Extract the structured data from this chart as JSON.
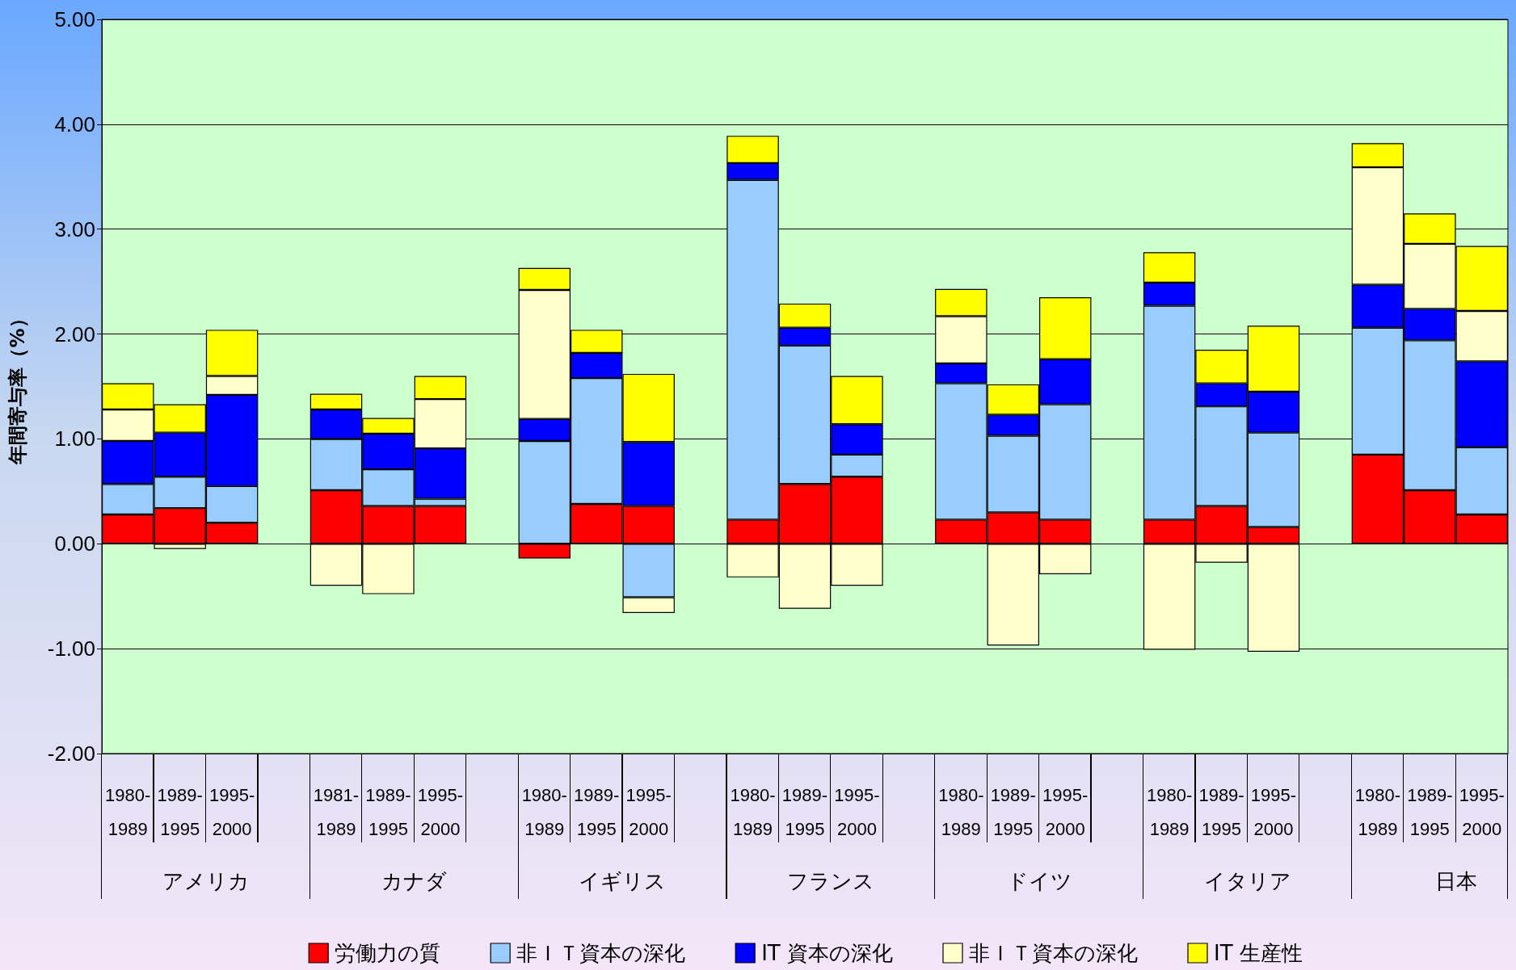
{
  "chart_data": {
    "type": "bar",
    "stacked": true,
    "ylabel": "年間寄与率（%）",
    "categories": [
      "1980-\n1989",
      "1989-\n1995",
      "1995-\n2000",
      null,
      "1981-\n1989",
      "1989-\n1995",
      "1995-\n2000",
      null,
      "1980-\n1989",
      "1989-\n1995",
      "1995-\n2000",
      null,
      "1980-\n1989",
      "1989-\n1995",
      "1995-\n2000",
      null,
      "1980-\n1989",
      "1989-\n1995",
      "1995-\n2000",
      null,
      "1980-\n1989",
      "1989-\n1995",
      "1995-\n2000",
      null,
      "1980-\n1989",
      "1989-\n1995",
      "1995-\n2000"
    ],
    "annotations": [
      "アメリカ",
      "カナダ",
      "イギリス",
      "フランス",
      "ドイツ",
      "イタリア",
      "日本"
    ],
    "series": [
      {
        "name": "労働力の質",
        "color": "#ff0000",
        "values": [
          0.28,
          0.34,
          0.2,
          null,
          0.51,
          0.36,
          0.36,
          null,
          -0.14,
          0.38,
          0.36,
          null,
          0.23,
          0.57,
          0.64,
          null,
          0.23,
          0.3,
          0.23,
          null,
          0.23,
          0.36,
          0.16,
          null,
          0.85,
          0.51,
          0.28
        ]
      },
      {
        "name": "非ＩＴ資本の深化",
        "color": "#99ccff",
        "values": [
          0.29,
          0.3,
          0.35,
          null,
          0.49,
          0.35,
          0.07,
          null,
          0.98,
          1.2,
          -0.51,
          null,
          3.24,
          1.32,
          0.21,
          null,
          1.3,
          0.73,
          1.1,
          null,
          2.04,
          0.95,
          0.9,
          null,
          1.21,
          1.43,
          0.64
        ]
      },
      {
        "name": "IT 資本の深化",
        "color": "#0000ff",
        "values": [
          0.41,
          0.42,
          0.87,
          null,
          0.28,
          0.34,
          0.48,
          null,
          0.21,
          0.24,
          0.61,
          null,
          0.16,
          0.17,
          0.29,
          null,
          0.19,
          0.2,
          0.43,
          null,
          0.22,
          0.22,
          0.39,
          null,
          0.41,
          0.3,
          0.82
        ]
      },
      {
        "name": "非ＩＴ資本の深化",
        "color": "#ffffcc",
        "values": [
          0.3,
          -0.05,
          0.18,
          null,
          -0.4,
          -0.48,
          0.47,
          null,
          1.23,
          0,
          -0.15,
          null,
          -0.32,
          -0.62,
          -0.4,
          null,
          0.45,
          -0.97,
          -0.29,
          null,
          -1.01,
          -0.18,
          -1.03,
          null,
          1.12,
          0.62,
          0.48
        ]
      },
      {
        "name": "IT 生産性",
        "color": "#ffff00",
        "values": [
          0.25,
          0.27,
          0.44,
          null,
          0.15,
          0.15,
          0.22,
          null,
          0.21,
          0.22,
          0.65,
          null,
          0.26,
          0.23,
          0.46,
          null,
          0.26,
          0.29,
          0.59,
          null,
          0.29,
          0.32,
          0.63,
          null,
          0.23,
          0.29,
          0.62
        ]
      }
    ],
    "ylim": [
      -2,
      5
    ],
    "yticks": [
      {
        "value": -2,
        "label": "-2.00"
      },
      {
        "value": -1,
        "label": "-1.00"
      },
      {
        "value": 0,
        "label": "0.00"
      },
      {
        "value": 1,
        "label": "1.00"
      },
      {
        "value": 2,
        "label": "2.00"
      },
      {
        "value": 3,
        "label": "3.00"
      },
      {
        "value": 4,
        "label": "4.00"
      },
      {
        "value": 5,
        "label": "5.00"
      }
    ],
    "grid": "y",
    "legend": "bottom"
  }
}
